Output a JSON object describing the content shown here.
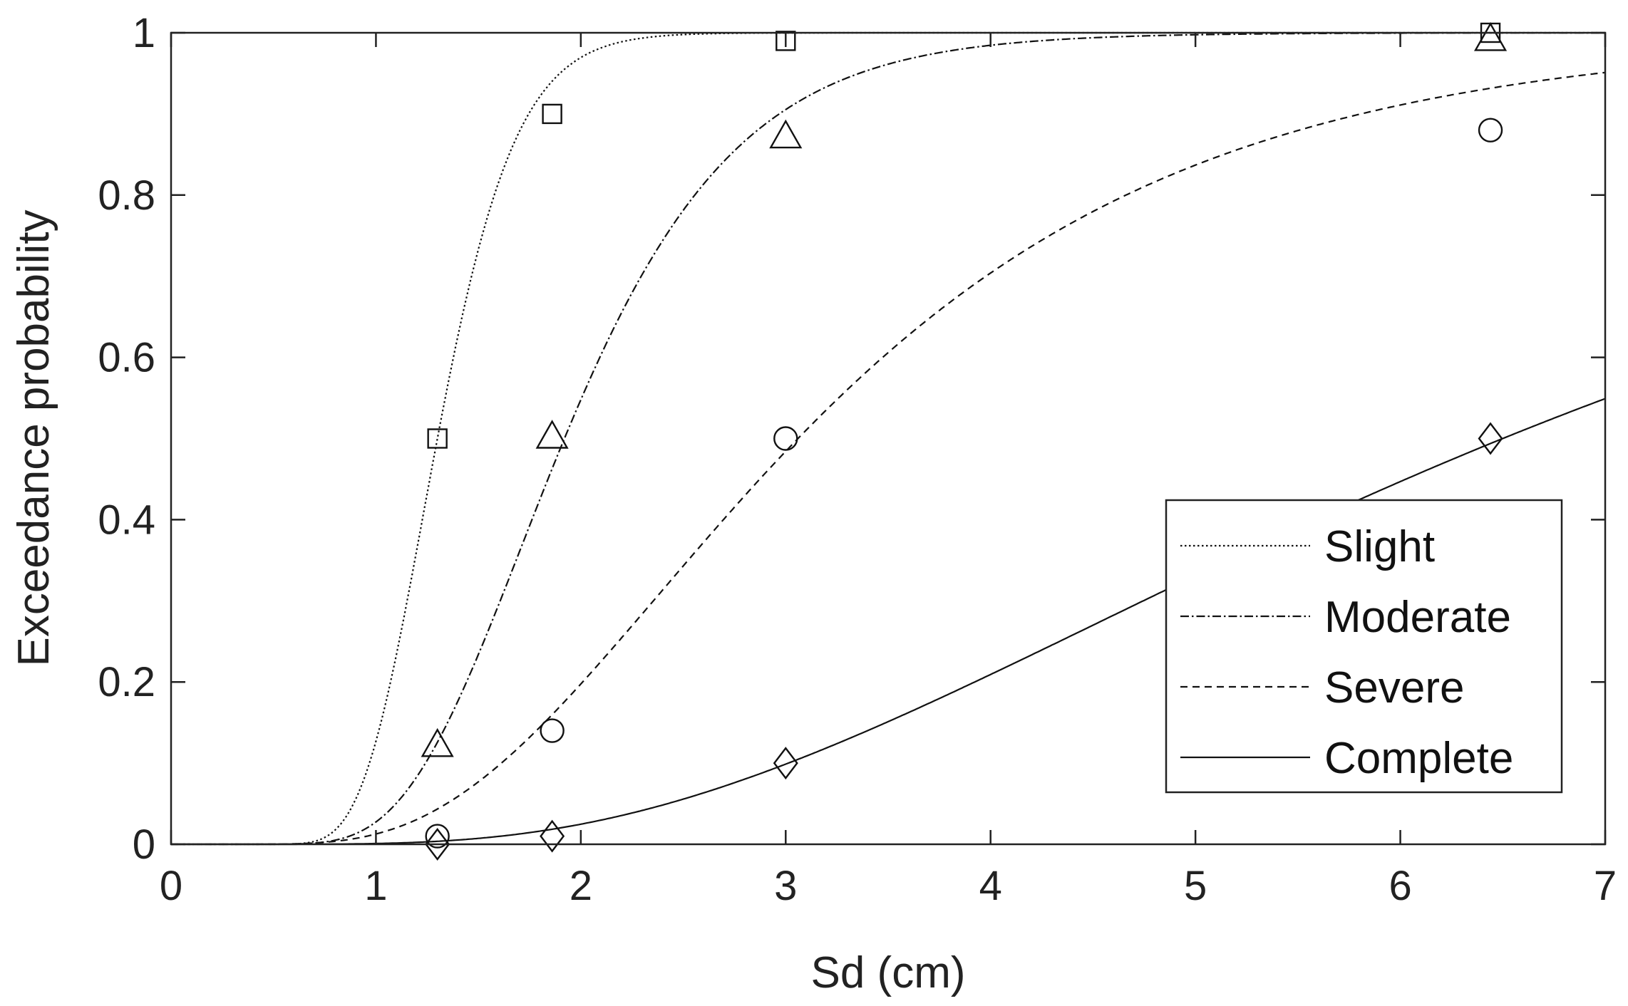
{
  "chart_data": {
    "type": "line",
    "xlabel": "Sd (cm)",
    "ylabel": "Exceedance probability",
    "xlim": [
      0,
      7
    ],
    "ylim": [
      0,
      1
    ],
    "xticks": [
      0,
      1,
      2,
      3,
      4,
      5,
      6,
      7
    ],
    "yticks": [
      0,
      0.2,
      0.4,
      0.6,
      0.8,
      1
    ],
    "xtick_labels": [
      "0",
      "1",
      "2",
      "3",
      "4",
      "5",
      "6",
      "7"
    ],
    "ytick_labels": [
      "0",
      "0.2",
      "0.4",
      "0.6",
      "0.8",
      "1"
    ],
    "grid": false,
    "legend_position": "right-middle",
    "series": [
      {
        "name": "Slight",
        "line_style": "dotted",
        "marker": "square",
        "median": 1.3,
        "beta": 0.23,
        "points": [
          {
            "x": 1.3,
            "y": 0.5
          },
          {
            "x": 1.86,
            "y": 0.9
          },
          {
            "x": 3.0,
            "y": 0.99
          },
          {
            "x": 6.44,
            "y": 1.0
          }
        ]
      },
      {
        "name": "Moderate",
        "line_style": "dashdot",
        "marker": "triangle",
        "median": 1.92,
        "beta": 0.34,
        "points": [
          {
            "x": 1.3,
            "y": 0.12
          },
          {
            "x": 1.86,
            "y": 0.5
          },
          {
            "x": 3.0,
            "y": 0.87
          },
          {
            "x": 6.44,
            "y": 0.99
          }
        ]
      },
      {
        "name": "Severe",
        "line_style": "dashed",
        "marker": "circle",
        "median": 3.06,
        "beta": 0.5,
        "points": [
          {
            "x": 1.3,
            "y": 0.01
          },
          {
            "x": 1.86,
            "y": 0.14
          },
          {
            "x": 3.0,
            "y": 0.5
          },
          {
            "x": 6.44,
            "y": 0.88
          }
        ]
      },
      {
        "name": "Complete",
        "line_style": "solid",
        "marker": "diamond",
        "median": 6.5,
        "beta": 0.6,
        "points": [
          {
            "x": 1.3,
            "y": 0.0
          },
          {
            "x": 1.86,
            "y": 0.01
          },
          {
            "x": 3.0,
            "y": 0.1
          },
          {
            "x": 6.44,
            "y": 0.5
          }
        ]
      }
    ]
  }
}
